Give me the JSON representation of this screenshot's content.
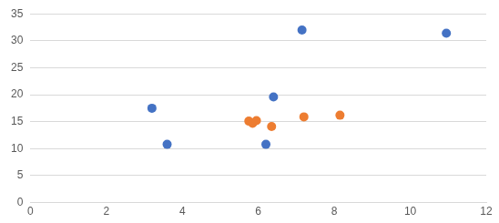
{
  "chart_data": {
    "type": "scatter",
    "series": [
      {
        "color": "#4472c4",
        "marker": "circle",
        "x": [
          3.2,
          3.6,
          6.4,
          6.2,
          7.15,
          10.95
        ],
        "values": [
          17.5,
          10.8,
          19.6,
          10.8,
          32.0,
          31.4
        ]
      },
      {
        "color": "#ed7d31",
        "marker": "circle",
        "x": [
          5.75,
          5.85,
          5.95,
          6.35,
          7.2,
          8.15
        ],
        "values": [
          15.1,
          14.7,
          15.2,
          14.1,
          15.9,
          16.2
        ]
      }
    ],
    "xlim": [
      0,
      12
    ],
    "xticks": [
      0,
      2,
      4,
      6,
      8,
      10,
      12
    ],
    "ylim": [
      0,
      35
    ],
    "yticks": [
      0,
      5,
      10,
      15,
      20,
      25,
      30,
      35
    ],
    "grid": "y"
  }
}
